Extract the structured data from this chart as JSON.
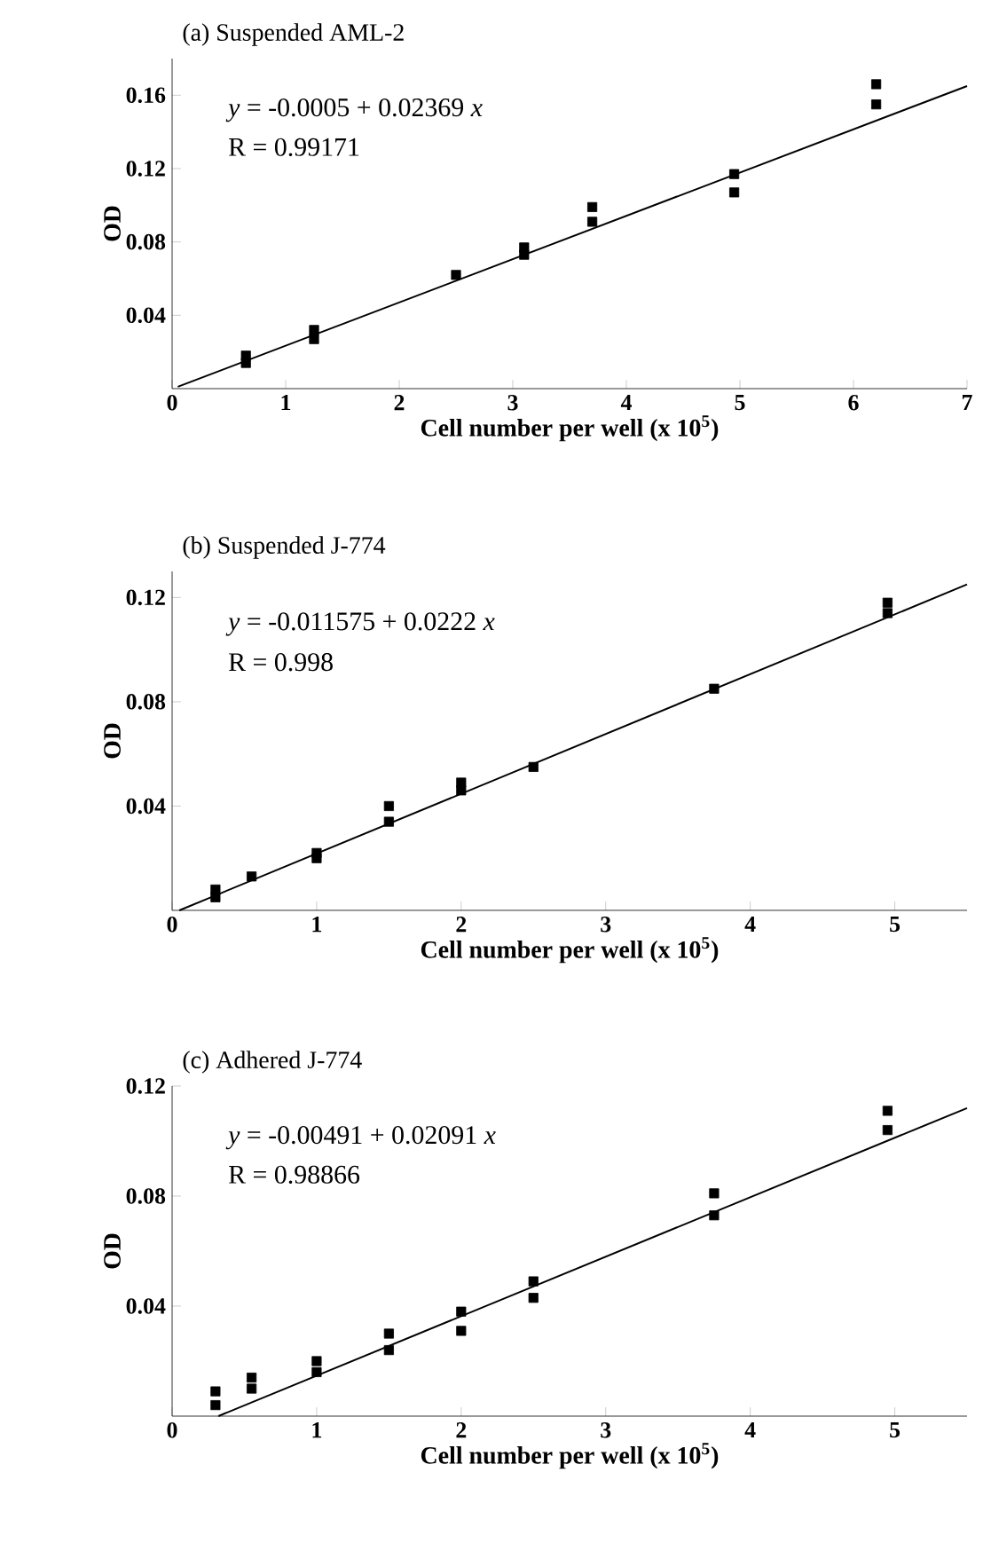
{
  "chart_data": [
    {
      "type": "scatter",
      "title": "(a) Suspended AML-2",
      "xlabel": "Cell number per well (x 10$^{5}$)",
      "ylabel": "OD",
      "annotations": [
        "*y* = -0.0005 + 0.02369 *x*",
        "R = 0.99171"
      ],
      "xlim": [
        0,
        7
      ],
      "ylim": [
        0,
        0.18
      ],
      "xticks": [
        0,
        1,
        2,
        3,
        4,
        5,
        6,
        7
      ],
      "yticks": [
        0.04,
        0.08,
        0.12,
        0.16
      ],
      "marker": "square",
      "grid": false,
      "series": [
        {
          "x": [
            0.65,
            0.65,
            1.25,
            1.25,
            2.5,
            3.1,
            3.1,
            3.7,
            3.7,
            4.95,
            4.95,
            6.2,
            6.2
          ],
          "values": [
            0.018,
            0.014,
            0.032,
            0.027,
            0.062,
            0.077,
            0.073,
            0.099,
            0.091,
            0.117,
            0.107,
            0.166,
            0.155
          ],
          "color": "#000000"
        },
        {
          "type": "line",
          "x": [
            0.05,
            7
          ],
          "values": [
            0.001,
            0.165
          ],
          "color": "#000000",
          "marker": "none"
        }
      ]
    },
    {
      "type": "scatter",
      "title": "(b) Suspended J-774",
      "xlabel": "Cell number per well (x 10$^{5}$)",
      "ylabel": "OD",
      "annotations": [
        "*y* = -0.011575 + 0.0222 *x*",
        "R = 0.998"
      ],
      "xlim": [
        0,
        5.5
      ],
      "ylim": [
        0,
        0.13
      ],
      "xticks": [
        0,
        1,
        2,
        3,
        4,
        5
      ],
      "yticks": [
        0.04,
        0.08,
        0.12
      ],
      "marker": "square",
      "grid": false,
      "series": [
        {
          "x": [
            0.3,
            0.3,
            0.55,
            1,
            1,
            1.5,
            1.5,
            2,
            2,
            2.5,
            3.75,
            4.95,
            4.95
          ],
          "values": [
            0.008,
            0.005,
            0.013,
            0.022,
            0.02,
            0.04,
            0.034,
            0.049,
            0.046,
            0.055,
            0.085,
            0.118,
            0.114
          ],
          "color": "#000000"
        },
        {
          "type": "line",
          "x": [
            0.05,
            5.5
          ],
          "values": [
            0.0,
            0.125
          ],
          "color": "#000000",
          "marker": "none"
        }
      ]
    },
    {
      "type": "scatter",
      "title": "(c) Adhered J-774",
      "xlabel": "Cell number per well (x 10$^{5}$)",
      "ylabel": "OD",
      "annotations": [
        "*y* = -0.00491 + 0.02091 *x*",
        "R = 0.98866"
      ],
      "xlim": [
        0,
        5.5
      ],
      "ylim": [
        0,
        0.12
      ],
      "xticks": [
        0,
        1,
        2,
        3,
        4,
        5
      ],
      "yticks": [
        0.04,
        0.08,
        0.12
      ],
      "marker": "square",
      "grid": false,
      "series": [
        {
          "x": [
            0.3,
            0.3,
            0.55,
            0.55,
            1,
            1,
            1.5,
            1.5,
            2,
            2,
            2.5,
            2.5,
            3.75,
            3.75,
            4.95,
            4.95
          ],
          "values": [
            0.009,
            0.004,
            0.014,
            0.01,
            0.02,
            0.016,
            0.03,
            0.024,
            0.038,
            0.031,
            0.049,
            0.043,
            0.081,
            0.073,
            0.111,
            0.104
          ],
          "color": "#000000"
        },
        {
          "type": "line",
          "x": [
            0.32,
            5.5
          ],
          "values": [
            0.0,
            0.112
          ],
          "color": "#000000",
          "marker": "none"
        }
      ]
    }
  ]
}
